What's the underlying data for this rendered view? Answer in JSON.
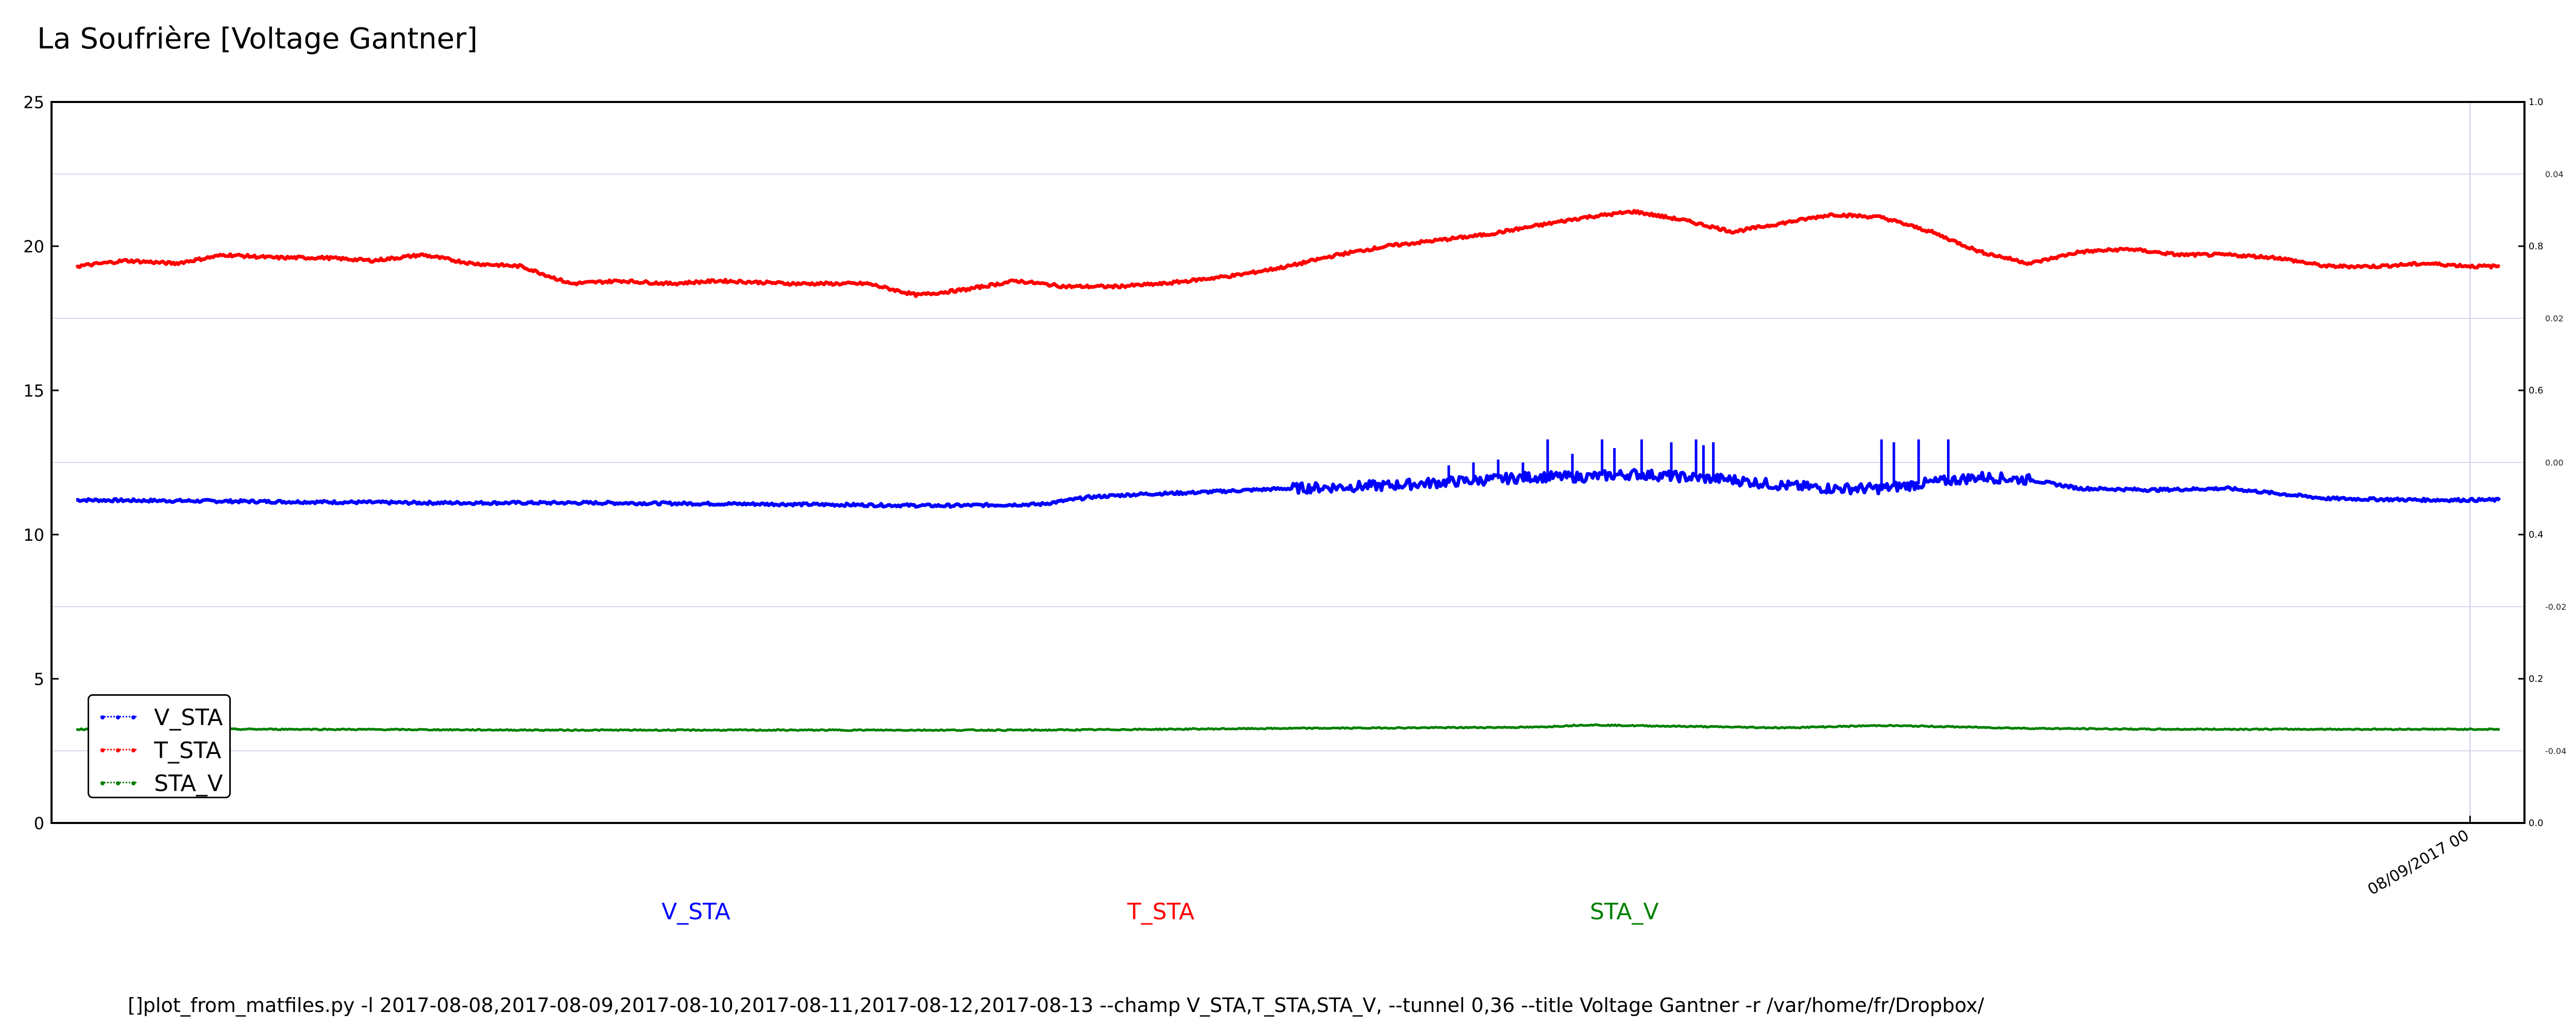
{
  "title": "La Soufrière [Voltage Gantner]",
  "command_line": "[]plot_from_matfiles.py -l 2017-08-08,2017-08-09,2017-08-10,2017-08-11,2017-08-12,2017-08-13 --champ V_STA,T_STA,STA_V, --tunnel 0,36 --title Voltage Gantner -r /var/home/fr/Dropbox/",
  "bottom_labels": [
    {
      "text": "V_STA",
      "color": "#0000ff"
    },
    {
      "text": "T_STA",
      "color": "#ff0000"
    },
    {
      "text": "STA_V",
      "color": "#008000"
    }
  ],
  "chart_data": {
    "type": "line",
    "title": "La Soufrière [Voltage Gantner]",
    "xlabel": "",
    "ylabel": "",
    "ylim": [
      0,
      25
    ],
    "yticks": [
      "0",
      "5",
      "10",
      "15",
      "20",
      "25"
    ],
    "xlim": [
      0,
      1
    ],
    "xticks": [
      {
        "x": 0.978,
        "label": "08/09/2017 00"
      }
    ],
    "secondary_y1_ticks": [
      "0.0",
      "0.2",
      "0.4",
      "0.6",
      "0.8",
      "1.0"
    ],
    "secondary_y2_ticks": [
      "-0.04",
      "-0.02",
      "0.00",
      "0.02",
      "0.04"
    ],
    "grid": true,
    "legend_position": "lower-left",
    "series": [
      {
        "name": "V_STA",
        "color": "#0000ff",
        "x": [
          0.01,
          0.08,
          0.15,
          0.22,
          0.3,
          0.36,
          0.4,
          0.42,
          0.44,
          0.46,
          0.5,
          0.54,
          0.56,
          0.58,
          0.6,
          0.62,
          0.64,
          0.66,
          0.68,
          0.7,
          0.72,
          0.74,
          0.76,
          0.78,
          0.8,
          0.82,
          0.85,
          0.88,
          0.92,
          0.96,
          0.99
        ],
        "y": [
          11.2,
          11.15,
          11.1,
          11.1,
          11.05,
          11.0,
          11.05,
          11.3,
          11.4,
          11.45,
          11.6,
          11.7,
          11.8,
          11.9,
          12.0,
          12.0,
          12.1,
          12.0,
          11.9,
          11.7,
          11.6,
          11.6,
          11.8,
          12.0,
          11.9,
          11.6,
          11.55,
          11.6,
          11.25,
          11.2,
          11.2
        ],
        "spikes": [
          {
            "x": 0.565,
            "y": 12.4
          },
          {
            "x": 0.575,
            "y": 12.5
          },
          {
            "x": 0.585,
            "y": 12.6
          },
          {
            "x": 0.595,
            "y": 12.5
          },
          {
            "x": 0.605,
            "y": 13.3
          },
          {
            "x": 0.615,
            "y": 12.8
          },
          {
            "x": 0.627,
            "y": 13.3
          },
          {
            "x": 0.632,
            "y": 13.0
          },
          {
            "x": 0.643,
            "y": 13.3
          },
          {
            "x": 0.655,
            "y": 13.2
          },
          {
            "x": 0.665,
            "y": 13.3
          },
          {
            "x": 0.668,
            "y": 13.1
          },
          {
            "x": 0.672,
            "y": 13.2
          },
          {
            "x": 0.74,
            "y": 13.3
          },
          {
            "x": 0.745,
            "y": 13.2
          },
          {
            "x": 0.755,
            "y": 13.3
          },
          {
            "x": 0.767,
            "y": 13.3
          }
        ]
      },
      {
        "name": "T_STA",
        "color": "#ff0000",
        "x": [
          0.01,
          0.03,
          0.05,
          0.07,
          0.09,
          0.11,
          0.13,
          0.15,
          0.17,
          0.19,
          0.21,
          0.23,
          0.25,
          0.27,
          0.3,
          0.33,
          0.35,
          0.37,
          0.39,
          0.41,
          0.43,
          0.45,
          0.48,
          0.5,
          0.52,
          0.54,
          0.56,
          0.58,
          0.6,
          0.62,
          0.64,
          0.66,
          0.68,
          0.7,
          0.72,
          0.74,
          0.76,
          0.78,
          0.8,
          0.82,
          0.84,
          0.86,
          0.88,
          0.9,
          0.92,
          0.94,
          0.96,
          0.98,
          0.99
        ],
        "y": [
          19.3,
          19.5,
          19.4,
          19.7,
          19.6,
          19.6,
          19.5,
          19.7,
          19.4,
          19.3,
          18.7,
          18.8,
          18.7,
          18.8,
          18.7,
          18.7,
          18.3,
          18.5,
          18.8,
          18.6,
          18.6,
          18.7,
          19.0,
          19.3,
          19.7,
          20.0,
          20.2,
          20.4,
          20.7,
          21.0,
          21.2,
          20.9,
          20.5,
          20.8,
          21.1,
          21.0,
          20.5,
          19.8,
          19.4,
          19.8,
          19.9,
          19.7,
          19.7,
          19.6,
          19.3,
          19.3,
          19.4,
          19.3,
          19.3
        ]
      },
      {
        "name": "STA_V",
        "color": "#008000",
        "x": [
          0.01,
          0.1,
          0.2,
          0.3,
          0.4,
          0.45,
          0.5,
          0.55,
          0.6,
          0.62,
          0.66,
          0.7,
          0.74,
          0.76,
          0.8,
          0.85,
          0.9,
          0.95,
          0.99
        ],
        "y": [
          3.25,
          3.25,
          3.22,
          3.22,
          3.22,
          3.25,
          3.28,
          3.3,
          3.32,
          3.4,
          3.35,
          3.3,
          3.38,
          3.35,
          3.28,
          3.25,
          3.25,
          3.25,
          3.25
        ]
      }
    ]
  }
}
